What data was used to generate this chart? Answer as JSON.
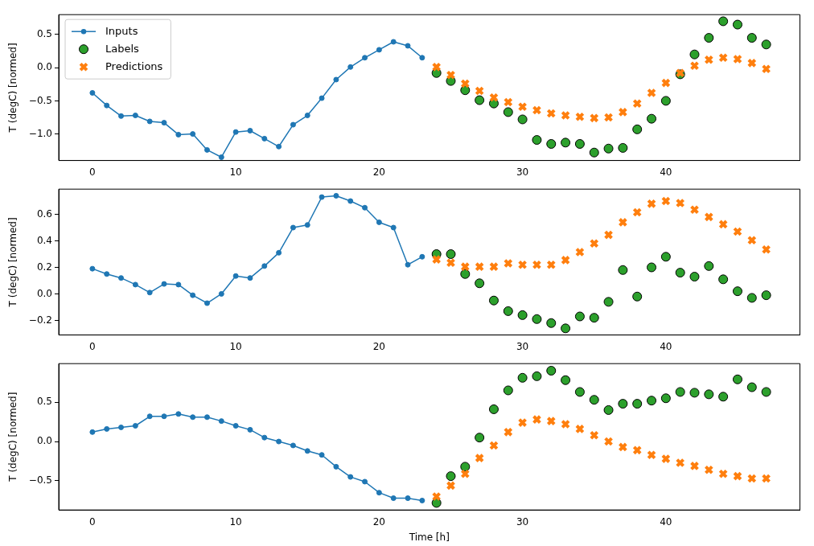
{
  "chart_data": [
    {
      "type": "line",
      "ylabel": "T (degC) [normed]",
      "xlim": [
        -2.35,
        49.35
      ],
      "xticks": [
        0,
        10,
        20,
        30,
        40
      ],
      "ylim": [
        -1.4,
        0.8
      ],
      "yticks": [
        {
          "value": -1,
          "label": "−1.0"
        },
        {
          "value": -0.5,
          "label": "−0.5"
        },
        {
          "value": 0,
          "label": "0.0"
        },
        {
          "value": 0.5,
          "label": "0.5"
        }
      ],
      "grid": false,
      "legend": "top left",
      "series": [
        {
          "name": "Inputs",
          "color": "#1f77b4",
          "marker": "circle",
          "line_style": "solid",
          "x": [
            0,
            1,
            2,
            3,
            4,
            5,
            6,
            7,
            8,
            9,
            10,
            11,
            12,
            13,
            14,
            15,
            16,
            17,
            18,
            19,
            20,
            21,
            22,
            23
          ],
          "values": [
            -0.38,
            -0.57,
            -0.73,
            -0.72,
            -0.81,
            -0.83,
            -1.01,
            -1.0,
            -1.24,
            -1.35,
            -0.97,
            -0.95,
            -1.07,
            -1.19,
            -0.86,
            -0.72,
            -0.46,
            -0.18,
            0.01,
            0.15,
            0.27,
            0.39,
            0.33,
            0.15
          ]
        },
        {
          "name": "Labels",
          "type": "scatter",
          "color": "#2ca02c",
          "marker": "circle",
          "x": [
            24,
            25,
            26,
            27,
            28,
            29,
            30,
            31,
            32,
            33,
            34,
            35,
            36,
            37,
            38,
            39,
            40,
            41,
            42,
            43,
            44,
            45,
            46,
            47
          ],
          "values": [
            -0.08,
            -0.2,
            -0.34,
            -0.49,
            -0.54,
            -0.67,
            -0.78,
            -1.09,
            -1.15,
            -1.13,
            -1.15,
            -1.28,
            -1.22,
            -1.21,
            -0.93,
            -0.77,
            -0.5,
            -0.1,
            0.2,
            0.45,
            0.7,
            0.65,
            0.45,
            0.35
          ]
        },
        {
          "name": "Predictions",
          "type": "scatter",
          "color": "#ff7f0e",
          "marker": "cross",
          "x": [
            24,
            25,
            26,
            27,
            28,
            29,
            30,
            31,
            32,
            33,
            34,
            35,
            36,
            37,
            38,
            39,
            40,
            41,
            42,
            43,
            44,
            45,
            46,
            47
          ],
          "values": [
            0.01,
            -0.11,
            -0.24,
            -0.35,
            -0.45,
            -0.52,
            -0.59,
            -0.64,
            -0.69,
            -0.72,
            -0.74,
            -0.76,
            -0.75,
            -0.67,
            -0.54,
            -0.38,
            -0.23,
            -0.08,
            0.03,
            0.12,
            0.15,
            0.13,
            0.07,
            -0.02
          ]
        }
      ]
    },
    {
      "type": "line",
      "ylabel": "T (degC) [normed]",
      "xlim": [
        -2.35,
        49.35
      ],
      "xticks": [
        0,
        10,
        20,
        30,
        40
      ],
      "ylim": [
        -0.31,
        0.79
      ],
      "yticks": [
        {
          "value": -0.2,
          "label": "−0.2"
        },
        {
          "value": 0,
          "label": "0.0"
        },
        {
          "value": 0.2,
          "label": "0.2"
        },
        {
          "value": 0.4,
          "label": "0.4"
        },
        {
          "value": 0.6,
          "label": "0.6"
        }
      ],
      "grid": false,
      "legend": false,
      "series": [
        {
          "color": "#1f77b4",
          "marker": "circle",
          "line_style": "solid",
          "x": [
            0,
            1,
            2,
            3,
            4,
            5,
            6,
            7,
            8,
            9,
            10,
            11,
            12,
            13,
            14,
            15,
            16,
            17,
            18,
            19,
            20,
            21,
            22,
            23
          ],
          "values": [
            0.19,
            0.15,
            0.12,
            0.07,
            0.01,
            0.075,
            0.07,
            -0.01,
            -0.07,
            0.0,
            0.135,
            0.12,
            0.21,
            0.31,
            0.5,
            0.52,
            0.73,
            0.74,
            0.7,
            0.65,
            0.54,
            0.5,
            0.22,
            0.28
          ]
        },
        {
          "type": "scatter",
          "color": "#2ca02c",
          "marker": "circle",
          "x": [
            24,
            25,
            26,
            27,
            28,
            29,
            30,
            31,
            32,
            33,
            34,
            35,
            36,
            37,
            38,
            39,
            40,
            41,
            42,
            43,
            44,
            45,
            46,
            47
          ],
          "values": [
            0.3,
            0.3,
            0.15,
            0.08,
            -0.05,
            -0.13,
            -0.16,
            -0.19,
            -0.22,
            -0.26,
            -0.17,
            -0.18,
            -0.06,
            0.18,
            -0.02,
            0.2,
            0.28,
            0.16,
            0.13,
            0.21,
            0.11,
            0.02,
            -0.03,
            -0.01
          ]
        },
        {
          "type": "scatter",
          "color": "#ff7f0e",
          "marker": "cross",
          "x": [
            24,
            25,
            26,
            27,
            28,
            29,
            30,
            31,
            32,
            33,
            34,
            35,
            36,
            37,
            38,
            39,
            40,
            41,
            42,
            43,
            44,
            45,
            46,
            47
          ],
          "values": [
            0.26,
            0.235,
            0.205,
            0.205,
            0.205,
            0.23,
            0.22,
            0.22,
            0.22,
            0.255,
            0.315,
            0.38,
            0.445,
            0.54,
            0.615,
            0.68,
            0.7,
            0.685,
            0.635,
            0.58,
            0.525,
            0.47,
            0.405,
            0.335
          ]
        }
      ]
    },
    {
      "type": "line",
      "xlabel": "Time [h]",
      "ylabel": "T (degC) [normed]",
      "xlim": [
        -2.35,
        49.35
      ],
      "xticks": [
        0,
        10,
        20,
        30,
        40
      ],
      "ylim": [
        -0.87,
        0.99
      ],
      "yticks": [
        {
          "value": -0.5,
          "label": "−0.5"
        },
        {
          "value": 0,
          "label": "0.0"
        },
        {
          "value": 0.5,
          "label": "0.5"
        }
      ],
      "grid": false,
      "legend": false,
      "series": [
        {
          "color": "#1f77b4",
          "marker": "circle",
          "line_style": "solid",
          "x": [
            0,
            1,
            2,
            3,
            4,
            5,
            6,
            7,
            8,
            9,
            10,
            11,
            12,
            13,
            14,
            15,
            16,
            17,
            18,
            19,
            20,
            21,
            22,
            23
          ],
          "values": [
            0.12,
            0.16,
            0.18,
            0.2,
            0.32,
            0.32,
            0.35,
            0.31,
            0.31,
            0.26,
            0.2,
            0.15,
            0.05,
            0.0,
            -0.05,
            -0.12,
            -0.17,
            -0.32,
            -0.45,
            -0.51,
            -0.65,
            -0.72,
            -0.72,
            -0.75
          ]
        },
        {
          "type": "scatter",
          "color": "#2ca02c",
          "marker": "circle",
          "x": [
            24,
            25,
            26,
            27,
            28,
            29,
            30,
            31,
            32,
            33,
            34,
            35,
            36,
            37,
            38,
            39,
            40,
            41,
            42,
            43,
            44,
            45,
            46,
            47
          ],
          "values": [
            -0.78,
            -0.44,
            -0.32,
            0.05,
            0.41,
            0.65,
            0.81,
            0.83,
            0.9,
            0.78,
            0.63,
            0.53,
            0.4,
            0.48,
            0.48,
            0.52,
            0.55,
            0.63,
            0.62,
            0.6,
            0.57,
            0.79,
            0.69,
            0.63
          ]
        },
        {
          "type": "scatter",
          "color": "#ff7f0e",
          "marker": "cross",
          "x": [
            24,
            25,
            26,
            27,
            28,
            29,
            30,
            31,
            32,
            33,
            34,
            35,
            36,
            37,
            38,
            39,
            40,
            41,
            42,
            43,
            44,
            45,
            46,
            47
          ],
          "values": [
            -0.7,
            -0.56,
            -0.41,
            -0.21,
            -0.05,
            0.12,
            0.24,
            0.28,
            0.26,
            0.22,
            0.16,
            0.08,
            0.0,
            -0.07,
            -0.11,
            -0.17,
            -0.22,
            -0.27,
            -0.31,
            -0.36,
            -0.41,
            -0.44,
            -0.47,
            -0.47
          ]
        }
      ]
    }
  ]
}
